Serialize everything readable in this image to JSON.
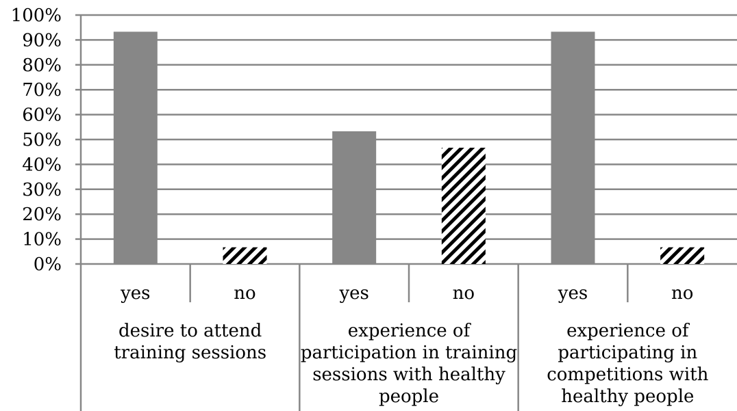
{
  "chart_data": {
    "type": "bar",
    "y_ticks": [
      "0%",
      "10%",
      "20%",
      "30%",
      "40%",
      "50%",
      "60%",
      "70%",
      "80%",
      "90%",
      "100%"
    ],
    "ylim": [
      0,
      100
    ],
    "grid": true,
    "legend": "none",
    "groups": [
      {
        "label_lines": [
          "desire to attend",
          "training sessions"
        ],
        "bars": [
          {
            "category": "yes",
            "value": 93.3
          },
          {
            "category": "no",
            "value": 6.7
          }
        ]
      },
      {
        "label_lines": [
          "experience of",
          "participation in training",
          "sessions with healthy",
          "people"
        ],
        "bars": [
          {
            "category": "yes",
            "value": 53.3
          },
          {
            "category": "no",
            "value": 46.7
          }
        ]
      },
      {
        "label_lines": [
          "experience of",
          "participating in",
          "competitions with",
          "healthy people"
        ],
        "bars": [
          {
            "category": "yes",
            "value": 93.3
          },
          {
            "category": "no",
            "value": 6.7
          }
        ]
      }
    ],
    "colors": {
      "yes": "#878787",
      "no_hatch": "#000000",
      "grid": "#878787",
      "axis": "#878787"
    }
  }
}
